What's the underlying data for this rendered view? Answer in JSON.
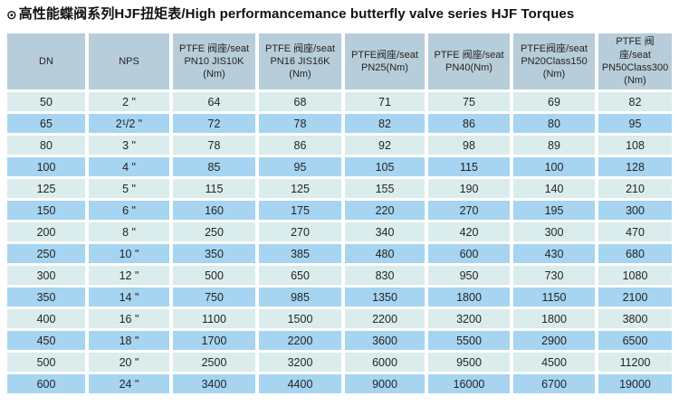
{
  "title": {
    "icon": "⊙",
    "text": "高性能蝶阀系列HJF扭矩表/High performancemance butterfly valve series HJF Torques"
  },
  "colors": {
    "header_bg": "#b7cdd9",
    "row_light": "#daeceb",
    "row_blue": "#a6d4f1",
    "text": "#242424",
    "background": "#ffffff"
  },
  "table": {
    "columns": [
      {
        "label": "DN"
      },
      {
        "label": "NPS"
      },
      {
        "label": "PTFE 阀座/seat PN10 JIS10K (Nm)"
      },
      {
        "label": "PTFE 阀座/seat PN16 JIS16K (Nm)"
      },
      {
        "label": "PTFE阀座/seat PN25(Nm)"
      },
      {
        "label": "PTFE 阀座/seat PN40(Nm)"
      },
      {
        "label": "PTFE阀座/seat PN20Class150 (Nm)"
      },
      {
        "label": "PTFE 阀座/seat PN50Class300 (Nm)"
      }
    ],
    "rows": [
      {
        "dn": "50",
        "nps": "2 \"",
        "values": [
          "64",
          "68",
          "71",
          "75",
          "69",
          "82"
        ]
      },
      {
        "dn": "65",
        "nps": "2¹/2 \"",
        "values": [
          "72",
          "78",
          "82",
          "86",
          "80",
          "95"
        ]
      },
      {
        "dn": "80",
        "nps": "3 \"",
        "values": [
          "78",
          "86",
          "92",
          "98",
          "89",
          "108"
        ]
      },
      {
        "dn": "100",
        "nps": "4 \"",
        "values": [
          "85",
          "95",
          "105",
          "115",
          "100",
          "128"
        ]
      },
      {
        "dn": "125",
        "nps": "5 \"",
        "values": [
          "115",
          "125",
          "155",
          "190",
          "140",
          "210"
        ]
      },
      {
        "dn": "150",
        "nps": "6 \"",
        "values": [
          "160",
          "175",
          "220",
          "270",
          "195",
          "300"
        ]
      },
      {
        "dn": "200",
        "nps": "8 \"",
        "values": [
          "250",
          "270",
          "340",
          "420",
          "300",
          "470"
        ]
      },
      {
        "dn": "250",
        "nps": "10 \"",
        "values": [
          "350",
          "385",
          "480",
          "600",
          "430",
          "680"
        ]
      },
      {
        "dn": "300",
        "nps": "12 \"",
        "values": [
          "500",
          "650",
          "830",
          "950",
          "730",
          "1080"
        ]
      },
      {
        "dn": "350",
        "nps": "14 \"",
        "values": [
          "750",
          "985",
          "1350",
          "1800",
          "1150",
          "2100"
        ]
      },
      {
        "dn": "400",
        "nps": "16 \"",
        "values": [
          "1100",
          "1500",
          "2200",
          "3200",
          "1800",
          "3800"
        ]
      },
      {
        "dn": "450",
        "nps": "18 \"",
        "values": [
          "1700",
          "2200",
          "3600",
          "5500",
          "2900",
          "6500"
        ]
      },
      {
        "dn": "500",
        "nps": "20 \"",
        "values": [
          "2500",
          "3200",
          "6000",
          "9500",
          "4500",
          "11200"
        ]
      },
      {
        "dn": "600",
        "nps": "24 \"",
        "values": [
          "3400",
          "4400",
          "9000",
          "16000",
          "6700",
          "19000"
        ]
      }
    ]
  }
}
